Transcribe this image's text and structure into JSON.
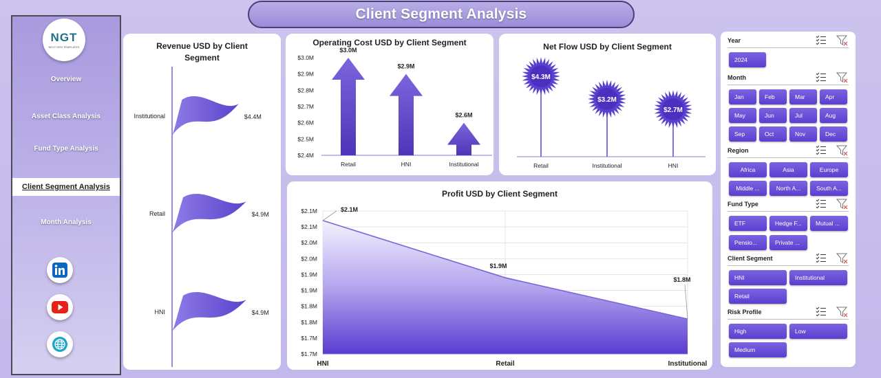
{
  "page": {
    "title": "Client Segment Analysis"
  },
  "logo": {
    "text": "NGT",
    "subtext": "NEXT GEN TEMPLATES"
  },
  "sidebar": {
    "items": [
      {
        "label": "Overview"
      },
      {
        "label": "Asset Class Analysis"
      },
      {
        "label": "Fund Type Analysis"
      },
      {
        "label": "Client Segment Analysis",
        "active": true
      },
      {
        "label": "Month Analysis"
      }
    ],
    "social": [
      "linkedin-icon",
      "youtube-icon",
      "globe-icon"
    ]
  },
  "charts": {
    "revenue": {
      "title_line1": "Revenue USD by Client",
      "title_line2": "Segment",
      "chart_data": {
        "type": "bar",
        "orientation": "horizontal",
        "categories": [
          "Institutional",
          "Retail",
          "HNI"
        ],
        "values": [
          4.4,
          4.9,
          4.9
        ],
        "value_labels": [
          "$4.4M",
          "$4.9M",
          "$4.9M"
        ],
        "unit": "USD millions"
      }
    },
    "opcost": {
      "title": "Operating Cost USD by Client Segment",
      "chart_data": {
        "type": "bar",
        "categories": [
          "Retail",
          "HNI",
          "Institutional"
        ],
        "values": [
          3.0,
          2.9,
          2.6
        ],
        "value_labels": [
          "$3.0M",
          "$2.9M",
          "$2.6M"
        ],
        "ylim": [
          2.4,
          3.0
        ],
        "yticks": [
          "$3.0M",
          "$2.9M",
          "$2.8M",
          "$2.7M",
          "$2.6M",
          "$2.5M",
          "$2.4M"
        ]
      }
    },
    "netflow": {
      "title": "Net Flow USD by Client Segment",
      "chart_data": {
        "type": "bar",
        "style": "lollipop",
        "categories": [
          "Retail",
          "Institutional",
          "HNI"
        ],
        "values": [
          4.3,
          3.2,
          2.7
        ],
        "value_labels": [
          "$4.3M",
          "$3.2M",
          "$2.7M"
        ]
      }
    },
    "profit": {
      "title": "Profit USD by Client Segment",
      "chart_data": {
        "type": "area",
        "categories": [
          "HNI",
          "Retail",
          "Institutional"
        ],
        "values": [
          2.12,
          1.94,
          1.81
        ],
        "value_labels": [
          "$2.1M",
          "$1.9M",
          "$1.8M"
        ],
        "ylim": [
          1.7,
          2.15
        ],
        "yticks": [
          "$2.1M",
          "$2.1M",
          "$2.0M",
          "$2.0M",
          "$1.9M",
          "$1.9M",
          "$1.8M",
          "$1.8M",
          "$1.7M",
          "$1.7M"
        ],
        "grid": true
      }
    }
  },
  "slicers": {
    "year": {
      "label": "Year",
      "options": [
        "2024"
      ]
    },
    "month": {
      "label": "Month",
      "options": [
        "Jan",
        "Feb",
        "Mar",
        "Apr",
        "May",
        "Jun",
        "Jul",
        "Aug",
        "Sep",
        "Oct",
        "Nov",
        "Dec"
      ]
    },
    "region": {
      "label": "Region",
      "options": [
        "Africa",
        "Asia",
        "Europe",
        "Middle ...",
        "North A...",
        "South A..."
      ]
    },
    "fund_type": {
      "label": "Fund Type",
      "options": [
        "ETF",
        "Hedge F...",
        "Mutual ...",
        "Pensio...",
        "Private ..."
      ]
    },
    "client_segment": {
      "label": "Client Segment",
      "options": [
        "HNI",
        "Institutional",
        "Retail"
      ]
    },
    "risk_profile": {
      "label": "Risk Profile",
      "options": [
        "High",
        "Low",
        "Medium"
      ]
    }
  },
  "colors": {
    "accent": "#5a3fcf",
    "bar": "#6f55d6",
    "background": "#c6bcec"
  }
}
